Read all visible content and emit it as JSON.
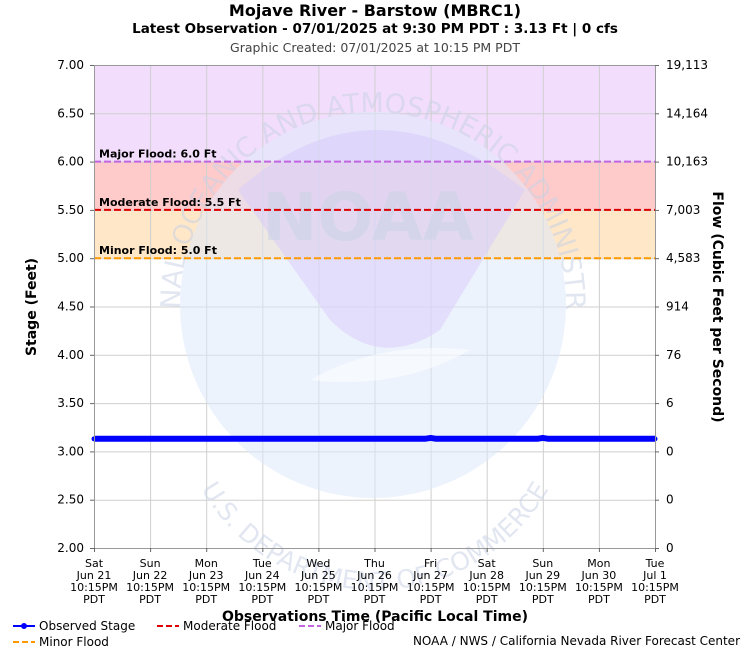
{
  "header": {
    "title": "Mojave River - Barstow (MBRC1)",
    "subtitle": "Latest Observation - 07/01/2025 at 9:30 PM PDT : 3.13 Ft | 0 cfs",
    "created": "Graphic Created: 07/01/2025 at 10:15 PM PDT"
  },
  "chart_data": {
    "type": "line",
    "xlabel": "Observations Time (Pacific Local Time)",
    "ylabel": "Stage (Feet)",
    "y2label": "Flow (Cubic Feet per Second)",
    "ylim": [
      2.0,
      7.0
    ],
    "y_ticks": [
      "2.00",
      "2.50",
      "3.00",
      "3.50",
      "4.00",
      "4.50",
      "5.00",
      "5.50",
      "6.00",
      "6.50",
      "7.00"
    ],
    "y2_ticks": [
      "0",
      "0",
      "0",
      "6",
      "76",
      "914",
      "4,583",
      "7,003",
      "10,163",
      "14,164",
      "19,113"
    ],
    "x_ticks": [
      [
        "Sat",
        "Jun 21",
        "10:15PM",
        "PDT"
      ],
      [
        "Sun",
        "Jun 22",
        "10:15PM",
        "PDT"
      ],
      [
        "Mon",
        "Jun 23",
        "10:15PM",
        "PDT"
      ],
      [
        "Tue",
        "Jun 24",
        "10:15PM",
        "PDT"
      ],
      [
        "Wed",
        "Jun 25",
        "10:15PM",
        "PDT"
      ],
      [
        "Thu",
        "Jun 26",
        "10:15PM",
        "PDT"
      ],
      [
        "Fri",
        "Jun 27",
        "10:15PM",
        "PDT"
      ],
      [
        "Sat",
        "Jun 28",
        "10:15PM",
        "PDT"
      ],
      [
        "Sun",
        "Jun 29",
        "10:15PM",
        "PDT"
      ],
      [
        "Mon",
        "Jun 30",
        "10:15PM",
        "PDT"
      ],
      [
        "Tue",
        "Jul 1",
        "10:15PM",
        "PDT"
      ]
    ],
    "xlim": [
      0,
      10
    ],
    "grid": true,
    "flood_stages": [
      {
        "name": "Major Flood",
        "label": "Major Flood: 6.0 Ft",
        "value": 6.0,
        "color": "#c166e0",
        "band_color": "#f2ddfc"
      },
      {
        "name": "Moderate Flood",
        "label": "Moderate Flood: 5.5 Ft",
        "value": 5.5,
        "color": "#dd0000",
        "band_color": "#ffcaca"
      },
      {
        "name": "Minor Flood",
        "label": "Minor Flood: 5.0 Ft",
        "value": 5.0,
        "color": "#ff9900",
        "band_color": "#ffe7c8"
      }
    ],
    "series": [
      {
        "name": "Observed Stage",
        "color": "#0000ff",
        "x": [
          0,
          1,
          2,
          3,
          4,
          5,
          5.9,
          6,
          6.1,
          7,
          7.9,
          8,
          8.1,
          9,
          10
        ],
        "values": [
          3.13,
          3.13,
          3.13,
          3.13,
          3.13,
          3.13,
          3.13,
          3.14,
          3.13,
          3.13,
          3.13,
          3.14,
          3.13,
          3.13,
          3.13
        ]
      }
    ],
    "legend": [
      {
        "label": "Observed Stage",
        "color": "#0000ff",
        "style": "solid-marker"
      },
      {
        "label": "Moderate Flood",
        "color": "#dd0000",
        "style": "dashed"
      },
      {
        "label": "Major Flood",
        "color": "#c166e0",
        "style": "dashed"
      },
      {
        "label": "Minor Flood",
        "color": "#ff9900",
        "style": "dashed"
      }
    ],
    "legend_position": "bottom-left"
  },
  "watermark": {
    "logo": "NOAA",
    "arc_top": "NATIONAL OCEANIC AND ATMOSPHERIC ADMINISTRATION",
    "arc_bottom": "U.S. DEPARTMENT OF COMMERCE"
  },
  "footer": {
    "credit": "NOAA / NWS / California Nevada River Forecast Center"
  }
}
